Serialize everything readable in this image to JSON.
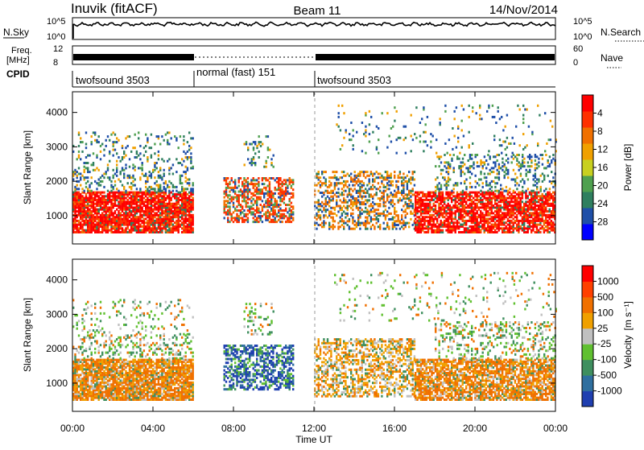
{
  "header": {
    "site": "Inuvik (fitACF)",
    "beam": "Beam 11",
    "date": "14/Nov/2014"
  },
  "noise_panel": {
    "left_label": "N.Sky",
    "right_label": "N.Search",
    "ticks": [
      "10^5",
      "10^0"
    ],
    "ticks_right": [
      "10^5",
      "10^0"
    ]
  },
  "freq_panel": {
    "left_label_1": "Freq.",
    "left_label_2": "[MHz]",
    "left_ticks": [
      "12",
      "8"
    ],
    "right_label": "Nave",
    "right_ticks": [
      "60",
      "0"
    ]
  },
  "cpid_panel": {
    "label": "CPID",
    "segments": [
      {
        "text": "twofsound 3503",
        "start": 0,
        "end": 6
      },
      {
        "text": "normal (fast) 151",
        "start": 6,
        "end": 12
      },
      {
        "text": "twofsound 3503",
        "start": 12,
        "end": 24
      }
    ]
  },
  "power_panel": {
    "ylabel": "Slant Range [km]",
    "yticks": [
      "1000",
      "2000",
      "3000",
      "4000"
    ],
    "colorbar_label": "Power [dB]",
    "colorbar_ticks": [
      "4",
      "8",
      "12",
      "16",
      "20",
      "24",
      "28"
    ],
    "colorbar_colors": [
      "#0000ff",
      "#1f4fa8",
      "#2f7f5f",
      "#4fa04f",
      "#c8d020",
      "#f0a000",
      "#f07000",
      "#ff3000",
      "#ff0000"
    ]
  },
  "velocity_panel": {
    "ylabel": "Slant Range [km]",
    "yticks": [
      "1000",
      "2000",
      "3000",
      "4000"
    ],
    "colorbar_label_main": "Velocity",
    "colorbar_label_units": "[m s⁻¹]",
    "colorbar_ticks": [
      "1000",
      "500",
      "100",
      "25",
      "-25",
      "-100",
      "-500",
      "-1000"
    ],
    "colorbar_colors": [
      "#1f3fb0",
      "#2f6f9f",
      "#3f8f5f",
      "#60c030",
      "#c0c0c0",
      "#f0a000",
      "#f07000",
      "#ff4000",
      "#ff0000"
    ]
  },
  "xaxis": {
    "label": "Time UT",
    "ticks": [
      "00:00",
      "04:00",
      "08:00",
      "12:00",
      "16:00",
      "20:00",
      "00:00"
    ]
  },
  "chart_data": [
    {
      "type": "line",
      "title": "Inuvik (fitACF) Beam 11 14/Nov/2014",
      "xlabel": "Time UT",
      "ylabel": "N.Sky",
      "xlim": [
        "00:00",
        "24:00"
      ],
      "note_series": "noise level near top of log scale throughout"
    },
    {
      "type": "heatmap",
      "xlabel": "Time UT",
      "ylabel": "Slant Range [km]",
      "ylim": [
        180,
        4600
      ],
      "colorbar": "Power [dB]",
      "colorbar_range": [
        0,
        30
      ]
    },
    {
      "type": "heatmap",
      "xlabel": "Time UT",
      "ylabel": "Slant Range [km]",
      "ylim": [
        180,
        4600
      ],
      "colorbar": "Velocity [m s-1]",
      "colorbar_range": [
        -1000,
        1000
      ]
    }
  ]
}
